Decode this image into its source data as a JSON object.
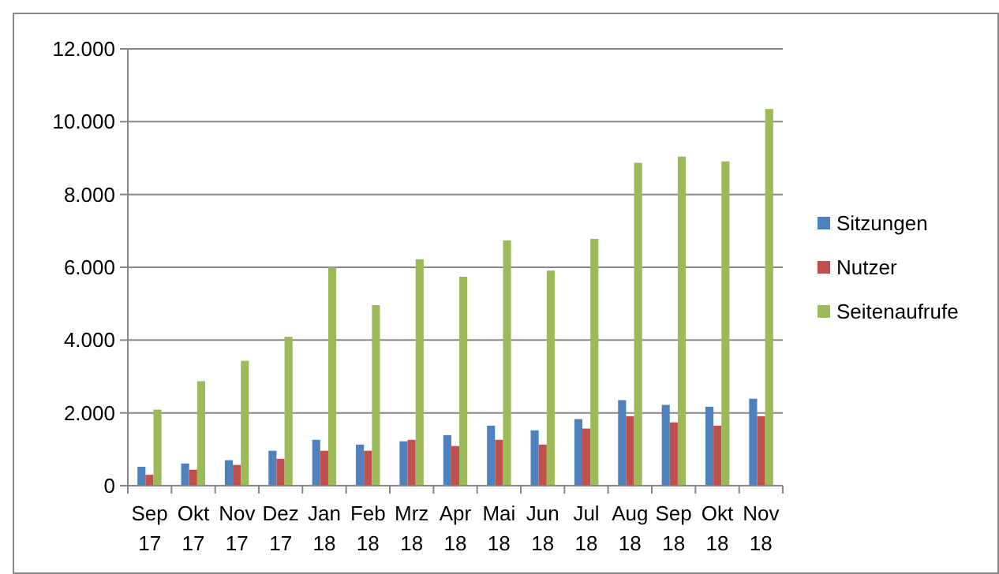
{
  "chart_data": {
    "type": "bar",
    "categories": [
      "Sep 17",
      "Okt 17",
      "Nov 17",
      "Dez 17",
      "Jan 18",
      "Feb 18",
      "Mrz 18",
      "Apr 18",
      "Mai 18",
      "Jun 18",
      "Jul 18",
      "Aug 18",
      "Sep 18",
      "Okt 18",
      "Nov 18"
    ],
    "series": [
      {
        "name": "Sitzungen",
        "color": "#4f81bd",
        "values": [
          520,
          610,
          700,
          960,
          1260,
          1130,
          1220,
          1390,
          1650,
          1520,
          1830,
          2350,
          2220,
          2170,
          2390
        ]
      },
      {
        "name": "Nutzer",
        "color": "#c0504d",
        "values": [
          300,
          440,
          570,
          740,
          960,
          960,
          1260,
          1090,
          1260,
          1130,
          1570,
          1910,
          1740,
          1650,
          1910
        ]
      },
      {
        "name": "Seitenaufrufe",
        "color": "#9bbb59",
        "values": [
          2090,
          2870,
          3430,
          4090,
          6000,
          4960,
          6220,
          5740,
          6740,
          5910,
          6780,
          8870,
          9040,
          8910,
          10350
        ]
      }
    ],
    "ylim": [
      0,
      12000
    ],
    "yticks": [
      {
        "value": 0,
        "label": "0"
      },
      {
        "value": 2000,
        "label": "2.000"
      },
      {
        "value": 4000,
        "label": "4.000"
      },
      {
        "value": 6000,
        "label": "6.000"
      },
      {
        "value": 8000,
        "label": "8.000"
      },
      {
        "value": 10000,
        "label": "10.000"
      },
      {
        "value": 12000,
        "label": "12.000"
      }
    ],
    "grid": "y",
    "legend": "right"
  }
}
